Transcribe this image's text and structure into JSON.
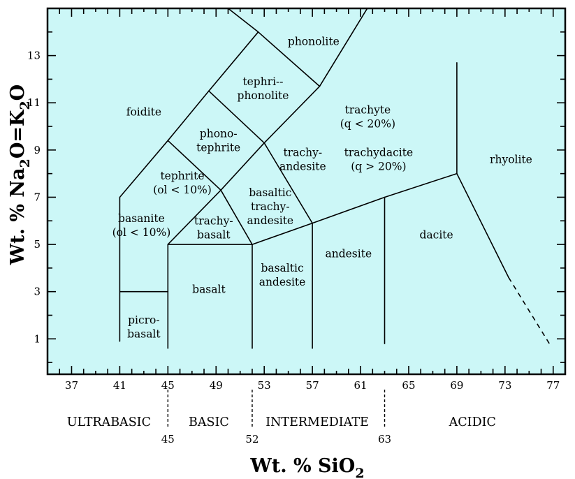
{
  "chart_data": {
    "type": "diagram",
    "xlabel": "Wt. % SiO2",
    "xlabel_parts": {
      "main": "Wt. % SiO",
      "sub": "2"
    },
    "ylabel": "Wt. % Na2O=K2O",
    "ylabel_parts": {
      "a": "Wt. % Na",
      "s1": "2",
      "b": "O=K",
      "s2": "2",
      "c": "O"
    },
    "xlim": [
      35,
      78
    ],
    "ylim": [
      -0.5,
      15
    ],
    "xticks": [
      37,
      41,
      45,
      49,
      53,
      57,
      61,
      65,
      69,
      73,
      77
    ],
    "yticks": [
      1,
      3,
      5,
      7,
      9,
      11,
      13
    ],
    "boundaries": [
      [
        [
          41,
          0.9
        ],
        [
          41,
          7
        ],
        [
          45,
          9.4
        ],
        [
          48.4,
          11.5
        ],
        [
          52.5,
          14
        ],
        [
          57.6,
          11.7
        ],
        [
          63,
          16.2
        ]
      ],
      [
        [
          41,
          3
        ],
        [
          45,
          3
        ]
      ],
      [
        [
          45,
          0.6
        ],
        [
          45,
          5
        ],
        [
          49.4,
          7.3
        ],
        [
          53,
          9.3
        ],
        [
          57.6,
          11.7
        ]
      ],
      [
        [
          45,
          5
        ],
        [
          52,
          5
        ]
      ],
      [
        [
          52,
          0.6
        ],
        [
          52,
          5
        ],
        [
          57,
          5.9
        ],
        [
          63,
          7
        ],
        [
          69,
          8
        ]
      ],
      [
        [
          49.4,
          7.3
        ],
        [
          52,
          5
        ]
      ],
      [
        [
          45,
          9.4
        ],
        [
          49.4,
          7.3
        ]
      ],
      [
        [
          48.4,
          11.5
        ],
        [
          53,
          9.3
        ],
        [
          57,
          5.9
        ]
      ],
      [
        [
          57,
          0.6
        ],
        [
          57,
          5.9
        ]
      ],
      [
        [
          63,
          0.8
        ],
        [
          63,
          7
        ]
      ],
      [
        [
          69,
          12.7
        ],
        [
          69,
          8
        ],
        [
          73.3,
          3.6
        ]
      ],
      [
        [
          50,
          15
        ],
        [
          52.5,
          14
        ]
      ]
    ],
    "dashed": [
      [
        [
          73.3,
          3.6
        ],
        [
          76.8,
          0.7
        ]
      ]
    ],
    "fields": [
      {
        "lines": [
          "phonolite"
        ],
        "x": 57.1,
        "y": 13.6
      },
      {
        "lines": [
          "foidite"
        ],
        "x": 43,
        "y": 10.6
      },
      {
        "lines": [
          "tephri--",
          "phonolite"
        ],
        "x": 52.9,
        "y": 11.6
      },
      {
        "lines": [
          "phono-",
          "tephrite"
        ],
        "x": 49.2,
        "y": 9.4
      },
      {
        "lines": [
          "tephrite",
          "(ol < 10%)"
        ],
        "x": 46.2,
        "y": 7.6
      },
      {
        "lines": [
          "basanite",
          "(ol < 10%)"
        ],
        "x": 42.8,
        "y": 5.8
      },
      {
        "lines": [
          "trachy-",
          "basalt"
        ],
        "x": 48.8,
        "y": 5.7
      },
      {
        "lines": [
          "basaltic",
          "trachy-",
          "andesite"
        ],
        "x": 53.5,
        "y": 6.6
      },
      {
        "lines": [
          "trachy-",
          "andesite"
        ],
        "x": 56.2,
        "y": 8.6
      },
      {
        "lines": [
          "trachyte",
          "(q < 20%)"
        ],
        "x": 61.6,
        "y": 10.4
      },
      {
        "lines": [
          "trachydacite",
          "(q > 20%)"
        ],
        "x": 62.5,
        "y": 8.6
      },
      {
        "lines": [
          "rhyolite"
        ],
        "x": 73.5,
        "y": 8.6
      },
      {
        "lines": [
          "basalt"
        ],
        "x": 48.4,
        "y": 3.1
      },
      {
        "lines": [
          "basaltic",
          "andesite"
        ],
        "x": 54.5,
        "y": 3.7
      },
      {
        "lines": [
          "picro-",
          "basalt"
        ],
        "x": 43,
        "y": 1.5
      },
      {
        "lines": [
          "andesite"
        ],
        "x": 60,
        "y": 4.6
      },
      {
        "lines": [
          "dacite"
        ],
        "x": 67.3,
        "y": 5.4
      }
    ],
    "classes": [
      {
        "label": "ULTRABASIC",
        "x": 40.1
      },
      {
        "label": "BASIC",
        "x": 48.4
      },
      {
        "label": "INTERMEDIATE",
        "x": 57.4
      },
      {
        "label": "ACIDIC",
        "x": 70.3
      }
    ],
    "class_dividers": [
      45,
      52,
      63
    ]
  }
}
